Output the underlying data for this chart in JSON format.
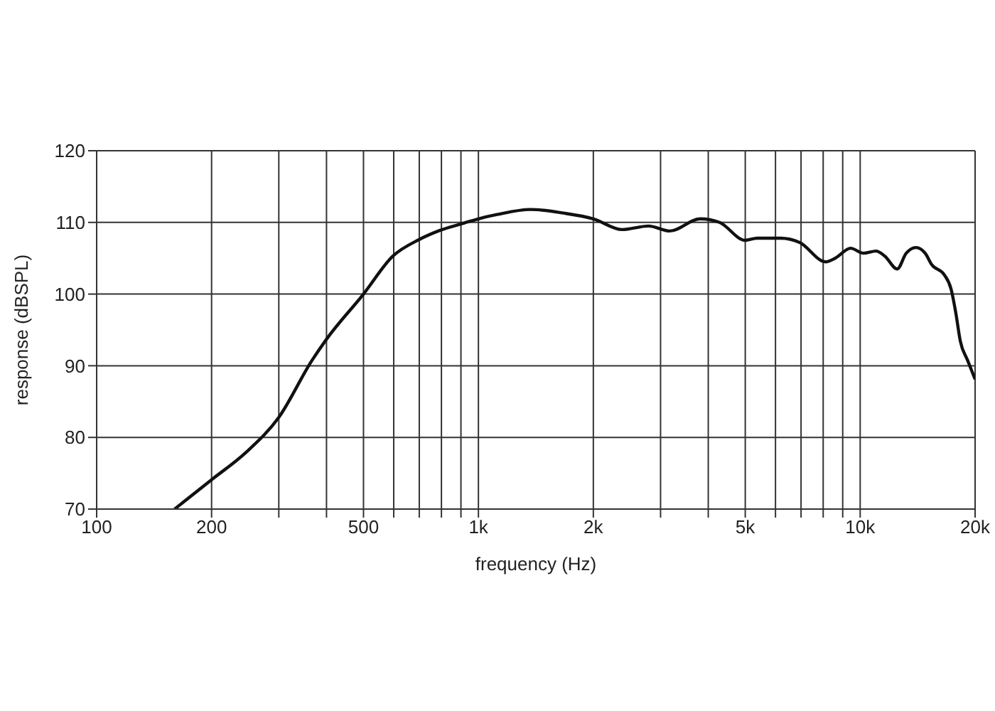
{
  "chart_data": {
    "type": "line",
    "xlabel": "frequency (Hz)",
    "ylabel": "response (dBSPL)",
    "log": "x",
    "xlim": [
      100,
      20000
    ],
    "xticks": [
      100,
      200,
      {
        "value": 300,
        "label": null
      },
      {
        "value": 400,
        "label": null
      },
      500,
      {
        "value": 600,
        "label": null
      },
      {
        "value": 700,
        "label": null
      },
      {
        "value": 800,
        "label": null
      },
      {
        "value": 900,
        "label": null
      },
      {
        "value": 1000,
        "label": "1k"
      },
      {
        "value": 2000,
        "label": "2k"
      },
      {
        "value": 3000,
        "label": null
      },
      {
        "value": 4000,
        "label": null
      },
      {
        "value": 5000,
        "label": "5k"
      },
      {
        "value": 6000,
        "label": null
      },
      {
        "value": 7000,
        "label": null
      },
      {
        "value": 8000,
        "label": null
      },
      {
        "value": 9000,
        "label": null
      },
      {
        "value": 10000,
        "label": "10k"
      },
      {
        "value": 20000,
        "label": "20k"
      }
    ],
    "ylim": [
      70,
      120
    ],
    "yticks": [
      70,
      80,
      90,
      100,
      110,
      120
    ],
    "grid": true,
    "marker": "none",
    "line_style": "solid",
    "x": [
      160,
      200,
      246,
      300,
      367,
      400,
      500,
      597,
      699,
      794,
      916,
      1000,
      1120,
      1370,
      1670,
      2000,
      2380,
      2790,
      3170,
      3810,
      4280,
      5000,
      5370,
      6190,
      6940,
      8120,
      8600,
      9440,
      10200,
      11000,
      11600,
      12500,
      13200,
      14000,
      14800,
      15400,
      16600,
      17300,
      17800,
      18300,
      19100,
      20000
    ],
    "series": [
      {
        "color": "#111111",
        "values": [
          70,
          74.1,
          77.9,
          82.8,
          90.8,
          93.7,
          100,
          105.3,
          107.6,
          108.9,
          109.9,
          110.5,
          111.1,
          111.8,
          111.3,
          110.5,
          109.0,
          109.5,
          108.8,
          110.5,
          110.0,
          107.5,
          107.8,
          107.8,
          107.2,
          104.5,
          105.0,
          106.4,
          105.7,
          106.0,
          105.3,
          103.5,
          105.7,
          106.5,
          105.7,
          104.1,
          102.7,
          100.7,
          97.4,
          93.4,
          90.8,
          88.1
        ]
      }
    ]
  }
}
